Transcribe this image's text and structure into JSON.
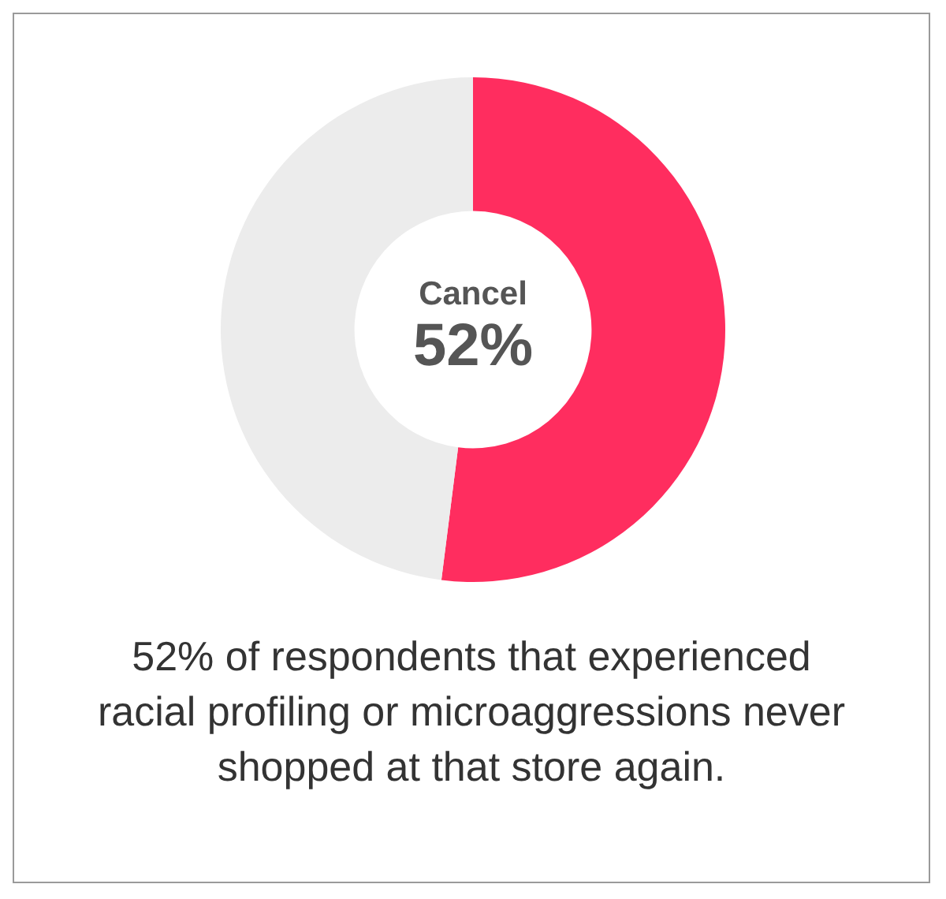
{
  "chart_data": {
    "type": "donut",
    "categories": [
      "Cancel",
      null
    ],
    "values": [
      52,
      48
    ],
    "colors": [
      "#ff2d5f",
      "#ececec"
    ],
    "value_labels": [
      "52%",
      null
    ],
    "annotations": [
      "52% of respondents that experienced racial profiling or microaggressions never shopped at that store again."
    ]
  }
}
